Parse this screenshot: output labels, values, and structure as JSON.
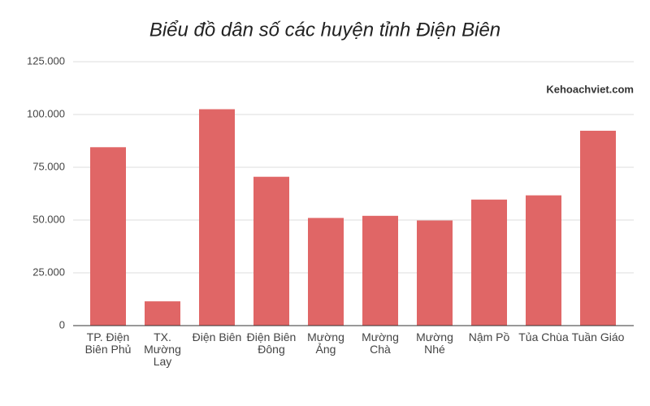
{
  "chart_data": {
    "type": "bar",
    "title": "Biểu đồ dân số các huyện tỉnh Điện Biên",
    "annotation": "Kehoachviet.com",
    "categories": [
      "TP. Điện Biên Phủ",
      "TX. Mường Lay",
      "Điện Biên",
      "Điện Biên Đông",
      "Mường Ảng",
      "Mường Chà",
      "Mường Nhé",
      "Nậm Pồ",
      "Tủa Chùa",
      "Tuần Giáo"
    ],
    "values": [
      84500,
      11500,
      102500,
      70500,
      51000,
      52000,
      49800,
      59700,
      61700,
      92300
    ],
    "color": "#e06666",
    "ylim": [
      0,
      125000
    ],
    "yticks": [
      0,
      {
        "value": 25000,
        "label": "25.000"
      },
      {
        "value": 50000,
        "label": "50.000"
      },
      {
        "value": 75000,
        "label": "75.000"
      },
      {
        "value": 100000,
        "label": "100.000"
      },
      {
        "value": 125000,
        "label": "125.000"
      }
    ],
    "grid": true
  }
}
